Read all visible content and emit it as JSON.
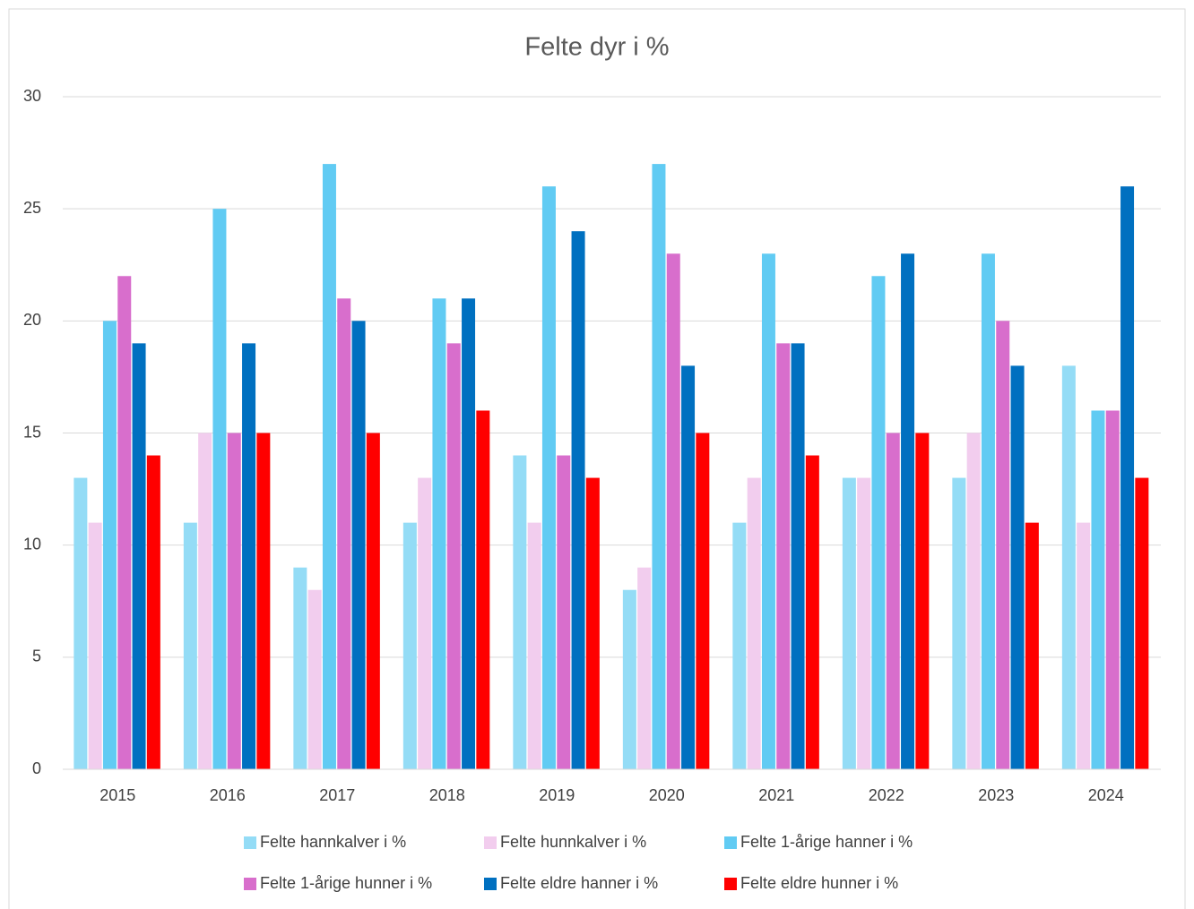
{
  "chart_data": {
    "type": "bar",
    "title": "Felte dyr i %",
    "categories": [
      "2015",
      "2016",
      "2017",
      "2018",
      "2019",
      "2020",
      "2021",
      "2022",
      "2023",
      "2024"
    ],
    "series": [
      {
        "name": "Felte hannkalver i %",
        "color": "#94dcf6",
        "values": [
          13,
          11,
          9,
          11,
          14,
          8,
          11,
          13,
          13,
          18
        ]
      },
      {
        "name": "Felte hunnkalver i %",
        "color": "#f2cdee",
        "values": [
          11,
          15,
          8,
          13,
          11,
          9,
          13,
          13,
          15,
          11
        ]
      },
      {
        "name": "Felte 1-årige hanner i %",
        "color": "#61cbf3",
        "values": [
          20,
          25,
          27,
          21,
          26,
          27,
          23,
          22,
          23,
          16
        ]
      },
      {
        "name": "Felte 1-årige hunner i %",
        "color": "#d86ecc",
        "values": [
          22,
          15,
          21,
          19,
          14,
          23,
          19,
          15,
          20,
          16
        ]
      },
      {
        "name": "Felte eldre hanner i %",
        "color": "#0070c0",
        "values": [
          19,
          19,
          20,
          21,
          24,
          18,
          19,
          23,
          18,
          26
        ]
      },
      {
        "name": "Felte eldre hunner i %",
        "color": "#ff0000",
        "values": [
          14,
          15,
          15,
          16,
          13,
          15,
          14,
          15,
          11,
          13
        ]
      }
    ],
    "ylim": [
      0,
      30
    ],
    "yticks": [
      0,
      5,
      10,
      15,
      20,
      25,
      30
    ],
    "grid": true,
    "legend": "bottom"
  }
}
